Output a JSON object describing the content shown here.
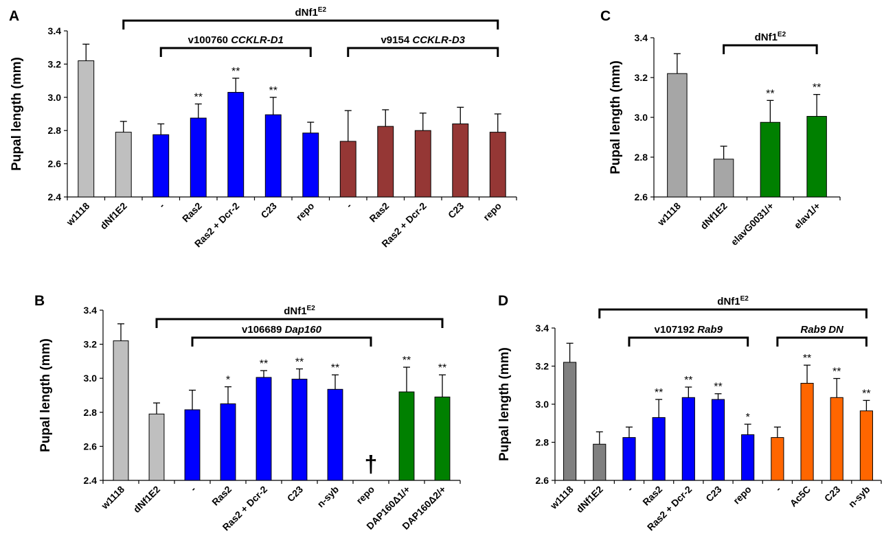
{
  "chart_data": [
    {
      "panel_label": "A",
      "type": "bar",
      "ylabel": "Pupal length (mm)",
      "ylim": [
        2.4,
        3.4
      ],
      "yticks": [
        "2.4",
        "2.6",
        "2.8",
        "3.0",
        "3.2",
        "3.4"
      ],
      "categories": [
        "w1118",
        "dNf1E2",
        "-",
        "Ras2",
        "Ras2 + Dcr-2",
        "C23",
        "repo",
        "-",
        "Ras2",
        "Ras2 + Dcr-2",
        "C23",
        "repo"
      ],
      "values": [
        3.22,
        2.79,
        2.775,
        2.875,
        3.03,
        2.895,
        2.785,
        2.735,
        2.825,
        2.8,
        2.84,
        2.79
      ],
      "errors": [
        0.1,
        0.065,
        0.065,
        0.085,
        0.085,
        0.105,
        0.065,
        0.185,
        0.1,
        0.105,
        0.1,
        0.11
      ],
      "colors": [
        "#bfbfbf",
        "#bfbfbf",
        "#0000ff",
        "#0000ff",
        "#0000ff",
        "#0000ff",
        "#0000ff",
        "#953735",
        "#953735",
        "#953735",
        "#953735",
        "#953735"
      ],
      "significance": [
        "",
        "",
        "",
        "**",
        "**",
        "**",
        "",
        "",
        "",
        "",
        "",
        ""
      ],
      "brackets": [
        {
          "label": "dNf1",
          "sup": "E2",
          "italic": "",
          "from": 1,
          "to": 11
        },
        {
          "label": "v100760 ",
          "sup": "",
          "italic": "CCKLR-D1",
          "from": 2,
          "to": 6
        },
        {
          "label": "v9154 ",
          "sup": "",
          "italic": "CCKLR-D3",
          "from": 7,
          "to": 11
        }
      ],
      "grid": false,
      "legend": "none"
    },
    {
      "panel_label": "B",
      "type": "bar",
      "ylabel": "Pupal length (mm)",
      "ylim": [
        2.4,
        3.4
      ],
      "yticks": [
        "2.4",
        "2.6",
        "2.8",
        "3.0",
        "3.2",
        "3.4"
      ],
      "categories": [
        "w1118",
        "dNf1E2",
        "-",
        "Ras2",
        "Ras2 + Dcr-2",
        "C23",
        "n-syb",
        "repo",
        "DAP160Δ1/+",
        "DAP160Δ2/+"
      ],
      "values": [
        3.22,
        2.79,
        2.815,
        2.85,
        3.005,
        2.995,
        2.935,
        null,
        2.92,
        2.89
      ],
      "errors": [
        0.1,
        0.065,
        0.115,
        0.1,
        0.04,
        0.06,
        0.085,
        null,
        0.145,
        0.13
      ],
      "colors": [
        "#bfbfbf",
        "#bfbfbf",
        "#0000ff",
        "#0000ff",
        "#0000ff",
        "#0000ff",
        "#0000ff",
        "#0000ff",
        "#008000",
        "#008000"
      ],
      "significance": [
        "",
        "",
        "",
        "*",
        "**",
        "**",
        "**",
        "",
        "**",
        "**"
      ],
      "lethal_marker": {
        "index": 7,
        "symbol": "†"
      },
      "brackets": [
        {
          "label": "dNf1",
          "sup": "E2",
          "italic": "",
          "from": 1,
          "to": 9
        },
        {
          "label": "v106689 ",
          "sup": "",
          "italic": "Dap160",
          "from": 2,
          "to": 7
        }
      ],
      "grid": false,
      "legend": "none"
    },
    {
      "panel_label": "C",
      "type": "bar",
      "ylabel": "Pupal length (mm)",
      "ylim": [
        2.6,
        3.4
      ],
      "yticks": [
        "2.6",
        "2.8",
        "3.0",
        "3.2",
        "3.4"
      ],
      "categories": [
        "w1118",
        "dNf1E2",
        "elavG0031/+",
        "elav1/+"
      ],
      "values": [
        3.22,
        2.79,
        2.975,
        3.005
      ],
      "errors": [
        0.1,
        0.065,
        0.11,
        0.11
      ],
      "colors": [
        "#a6a6a6",
        "#a6a6a6",
        "#008000",
        "#008000"
      ],
      "significance": [
        "",
        "",
        "**",
        "**"
      ],
      "brackets": [
        {
          "label": "dNf1",
          "sup": "E2",
          "italic": "",
          "from": 1,
          "to": 3
        }
      ],
      "grid": false,
      "legend": "none"
    },
    {
      "panel_label": "D",
      "type": "bar",
      "ylabel": "Pupal length (mm)",
      "ylim": [
        2.6,
        3.4
      ],
      "yticks": [
        "2.6",
        "2.8",
        "3.0",
        "3.2",
        "3.4"
      ],
      "categories": [
        "w1118",
        "dNf1E2",
        "-",
        "Ras2",
        "Ras2 + Dcr-2",
        "C23",
        "repo",
        "-",
        "Ac5C",
        "C23",
        "n-syb"
      ],
      "values": [
        3.22,
        2.79,
        2.825,
        2.93,
        3.035,
        3.025,
        2.84,
        2.825,
        3.11,
        3.035,
        2.965
      ],
      "errors": [
        0.1,
        0.065,
        0.055,
        0.095,
        0.055,
        0.03,
        0.055,
        0.055,
        0.095,
        0.1,
        0.055
      ],
      "colors": [
        "#808080",
        "#808080",
        "#0000ff",
        "#0000ff",
        "#0000ff",
        "#0000ff",
        "#0000ff",
        "#ff6600",
        "#ff6600",
        "#ff6600",
        "#ff6600"
      ],
      "significance": [
        "",
        "",
        "",
        "**",
        "**",
        "**",
        "*",
        "",
        "**",
        "**",
        "**"
      ],
      "brackets": [
        {
          "label": "dNf1",
          "sup": "E2",
          "italic": "",
          "from": 1,
          "to": 10
        },
        {
          "label": "v107192 ",
          "sup": "",
          "italic": "Rab9",
          "from": 2,
          "to": 6
        },
        {
          "label": "",
          "sup": "",
          "italic": "Rab9 DN",
          "from": 7,
          "to": 10
        }
      ],
      "grid": false,
      "legend": "none"
    }
  ]
}
